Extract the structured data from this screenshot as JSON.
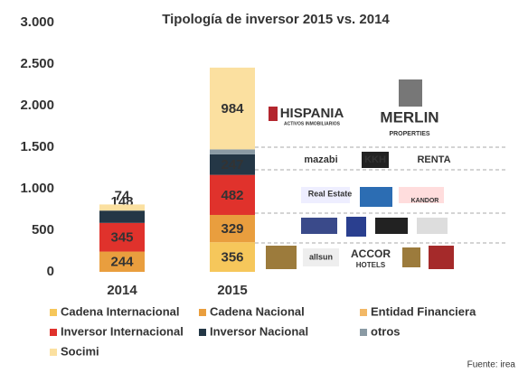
{
  "chart_data": {
    "type": "stacked_bar",
    "title": "Tipología de inversor 2015  vs. 2014",
    "categories": [
      "2014",
      "2015"
    ],
    "series": [
      {
        "name": "Cadena Internacional",
        "color": "#f6c75b",
        "values": [
          null,
          356
        ]
      },
      {
        "name": "Cadena Nacional",
        "color": "#e99e3e",
        "values": [
          244,
          329
        ]
      },
      {
        "name": "Entidad Financiera",
        "color": "#f2b866",
        "values": [
          null,
          null
        ]
      },
      {
        "name": "Inversor Internacional",
        "color": "#e0322c",
        "values": [
          345,
          482
        ]
      },
      {
        "name": "Inversor Nacional",
        "color": "#243746",
        "values": [
          148,
          247
        ]
      },
      {
        "name": "otros",
        "color": "#8a9aa4",
        "values": [
          null,
          60
        ],
        "labeled": false
      },
      {
        "name": "Socimi",
        "color": "#fbe0a0",
        "values": [
          74,
          984
        ]
      }
    ],
    "ylim": [
      0,
      3000
    ],
    "yticks": [
      0,
      500,
      {
        "value": 1000,
        "label": "1.000"
      },
      {
        "value": 1500,
        "label": "1.500"
      },
      {
        "value": 2000,
        "label": "2.000"
      },
      {
        "value": 2500,
        "label": "2.500"
      },
      {
        "value": 3000,
        "label": "3.000"
      }
    ],
    "logos": [
      "HISPANIA",
      "ACTIVOS INMOBILIARIOS",
      "MERLIN",
      "PROPERTIES",
      "mazabi",
      "KKH",
      "RENTA",
      "Real Estate",
      "KANDOR",
      "allsun",
      "ACCOR",
      "HOTELS"
    ],
    "source": "Fuente: irea"
  }
}
